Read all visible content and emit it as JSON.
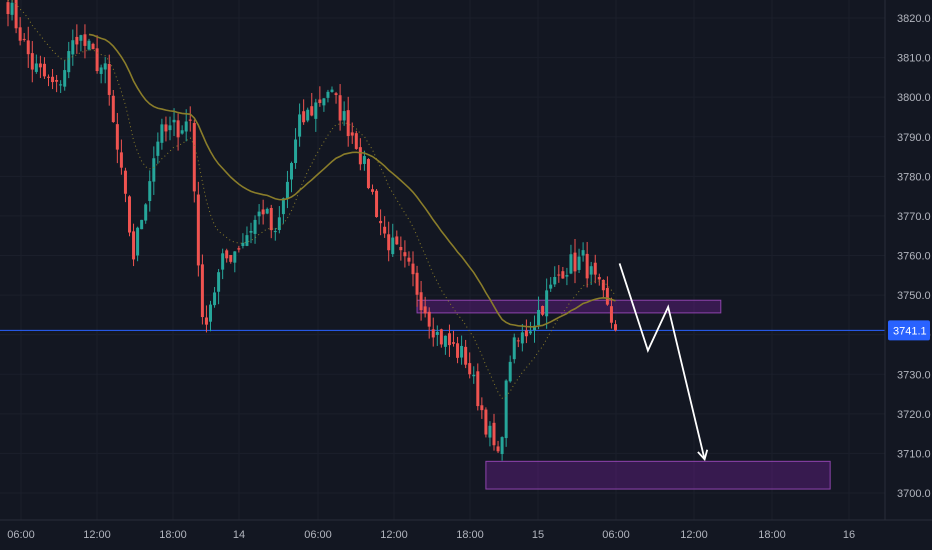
{
  "chart_data": {
    "type": "candlestick",
    "y_axis": {
      "range": [
        3697,
        3824
      ],
      "ticks": [
        "3820.0",
        "3810.0",
        "3800.0",
        "3790.0",
        "3780.0",
        "3770.0",
        "3760.0",
        "3750.0",
        "3740.0",
        "3730.0",
        "3720.0",
        "3710.0",
        "3700.0"
      ],
      "tick_values": [
        3820,
        3810,
        3800,
        3790,
        3780,
        3770,
        3760,
        3750,
        3740,
        3730,
        3720,
        3710,
        3700
      ]
    },
    "x_axis": {
      "ticks": [
        "06:00",
        "12:00",
        "18:00",
        "14",
        "06:00",
        "12:00",
        "18:00",
        "15",
        "06:00",
        "12:00",
        "18:00",
        "16"
      ]
    },
    "current_price": {
      "label": "3741.1",
      "value": 3741.1
    },
    "zones": [
      {
        "name": "resistance-zone",
        "from_index": 101,
        "to_index": 176,
        "low": 3745.5,
        "high": 3748.7
      },
      {
        "name": "target-zone",
        "from_index": 118,
        "to_index": 203,
        "low": 3701.0,
        "high": 3708.0
      }
    ],
    "projection_path": [
      {
        "index": 151,
        "price": 3758.0
      },
      {
        "index": 158,
        "price": 3736.0
      },
      {
        "index": 163,
        "price": 3747.0
      },
      {
        "index": 172,
        "price": 3708.5
      }
    ],
    "anchors": [
      {
        "index": 0,
        "price": 3824
      },
      {
        "index": 6,
        "price": 3808
      },
      {
        "index": 12,
        "price": 3802
      },
      {
        "index": 17,
        "price": 3816
      },
      {
        "index": 24,
        "price": 3806
      },
      {
        "index": 31,
        "price": 3760
      },
      {
        "index": 37,
        "price": 3790
      },
      {
        "index": 45,
        "price": 3794
      },
      {
        "index": 48,
        "price": 3742
      },
      {
        "index": 53,
        "price": 3758
      },
      {
        "index": 58,
        "price": 3764
      },
      {
        "index": 63,
        "price": 3772
      },
      {
        "index": 66,
        "price": 3764
      },
      {
        "index": 72,
        "price": 3793
      },
      {
        "index": 79,
        "price": 3802
      },
      {
        "index": 86,
        "price": 3789
      },
      {
        "index": 93,
        "price": 3765
      },
      {
        "index": 99,
        "price": 3756
      },
      {
        "index": 106,
        "price": 3740
      },
      {
        "index": 113,
        "price": 3734
      },
      {
        "index": 121,
        "price": 3708
      },
      {
        "index": 124,
        "price": 3735
      },
      {
        "index": 130,
        "price": 3744
      },
      {
        "index": 137,
        "price": 3757
      },
      {
        "index": 142,
        "price": 3759
      },
      {
        "index": 146,
        "price": 3751
      },
      {
        "index": 150,
        "price": 3741
      }
    ]
  },
  "colors": {
    "background": "#131722",
    "up": "#26a69a",
    "down": "#ef5350",
    "ma_slow": "#8a7d2a",
    "ma_fast": "#8a7d2a",
    "zone_fill": "rgba(123,31,162,0.35)",
    "zone_border": "#8e44ad",
    "price_line": "#2962ff",
    "arrow": "#ffffff",
    "axis_text": "#b2b5be"
  }
}
